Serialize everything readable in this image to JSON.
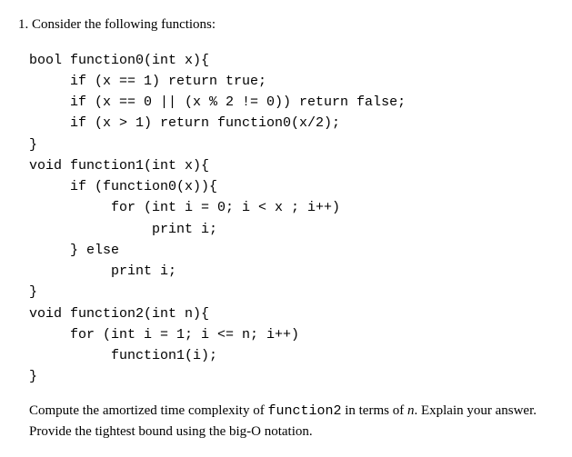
{
  "problem": {
    "number": "1.",
    "intro": "Consider the following functions:"
  },
  "code": {
    "l1": "bool function0(int x){",
    "l2": "     if (x == 1) return true;",
    "l3": "     if (x == 0 || (x % 2 != 0)) return false;",
    "l4": "     if (x > 1) return function0(x/2);",
    "l5": "}",
    "l6": "void function1(int x){",
    "l7": "     if (function0(x)){",
    "l8": "          for (int i = 0; i < x ; i++)",
    "l9": "               print i;",
    "l10": "     } else",
    "l11": "          print i;",
    "l12": "}",
    "l13": "void function2(int n){",
    "l14": "     for (int i = 1; i <= n; i++)",
    "l15": "          function1(i);",
    "l16": "}"
  },
  "question": {
    "p1a": "Compute the amortized time complexity of ",
    "p1b": "function2",
    "p1c": " in terms of ",
    "p1d": "n",
    "p1e": ". Explain your answer. Provide the tightest bound using the big-O notation."
  }
}
